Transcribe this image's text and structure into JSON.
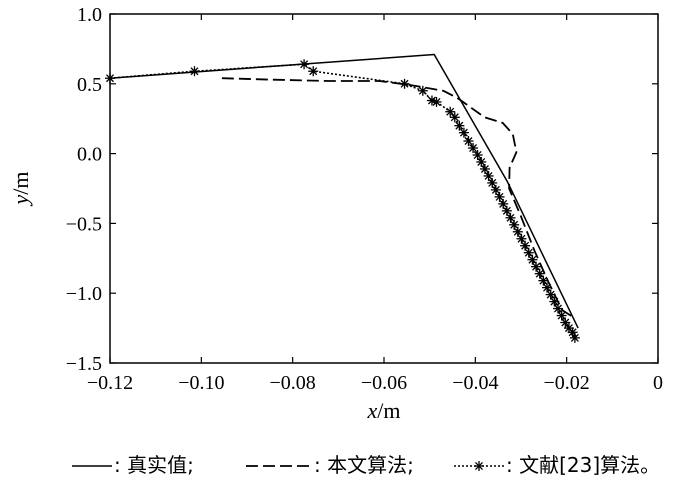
{
  "chart_data": {
    "type": "line",
    "xlabel_var": "x",
    "xlabel_unit": "/m",
    "ylabel_var": "y",
    "ylabel_unit": "/m",
    "xlim": [
      -0.12,
      0
    ],
    "ylim": [
      -1.5,
      1.0
    ],
    "x_ticks": [
      -0.12,
      -0.1,
      -0.08,
      -0.06,
      -0.04,
      -0.02,
      0
    ],
    "x_tick_labels": [
      "−0.12",
      "−0.10",
      "−0.08",
      "−0.06",
      "−0.04",
      "−0.02",
      "0"
    ],
    "y_ticks": [
      1.0,
      0.5,
      0.0,
      -0.5,
      -1.0,
      -1.5
    ],
    "y_tick_labels": [
      "1.0",
      "0.5",
      "0.0",
      "−0.5",
      "−1.0",
      "−1.5"
    ],
    "grid": false,
    "legend_position": "bottom",
    "series": [
      {
        "name": "真实值",
        "style": "solid",
        "marker": "none",
        "x": [
          -0.12,
          -0.049,
          -0.033,
          -0.0175
        ],
        "y": [
          0.54,
          0.71,
          -0.2,
          -1.25
        ]
      },
      {
        "name": "本文算法",
        "style": "dashed",
        "marker": "none",
        "x": [
          -0.0955,
          -0.085,
          -0.072,
          -0.061,
          -0.054,
          -0.047,
          -0.044,
          -0.041,
          -0.038,
          -0.034,
          -0.0318,
          -0.031,
          -0.0325,
          -0.0326,
          -0.03,
          -0.027,
          -0.024,
          -0.021,
          -0.0182
        ],
        "y": [
          0.54,
          0.53,
          0.52,
          0.52,
          0.49,
          0.45,
          0.4,
          0.33,
          0.26,
          0.22,
          0.14,
          0.01,
          -0.1,
          -0.25,
          -0.45,
          -0.7,
          -0.92,
          -1.12,
          -1.18
        ]
      },
      {
        "name": "文献[23]算法",
        "style": "dotted",
        "marker": "asterisk",
        "x": [
          -0.12,
          -0.1015,
          -0.0775,
          -0.0755,
          -0.0555,
          -0.0515,
          -0.0495,
          -0.0485,
          -0.0455,
          -0.0445,
          -0.0435,
          -0.0425,
          -0.0415,
          -0.0405,
          -0.0395,
          -0.0387,
          -0.0379,
          -0.0371,
          -0.0363,
          -0.0355,
          -0.0347,
          -0.0339,
          -0.0331,
          -0.0323,
          -0.0315,
          -0.0307,
          -0.0299,
          -0.0291,
          -0.0283,
          -0.0275,
          -0.0267,
          -0.0259,
          -0.0251,
          -0.0243,
          -0.0235,
          -0.0227,
          -0.0219,
          -0.0211,
          -0.0203,
          -0.0195,
          -0.0187,
          -0.0182
        ],
        "y": [
          0.54,
          0.59,
          0.64,
          0.59,
          0.5,
          0.45,
          0.38,
          0.37,
          0.3,
          0.26,
          0.2,
          0.15,
          0.09,
          0.04,
          -0.01,
          -0.06,
          -0.11,
          -0.16,
          -0.21,
          -0.26,
          -0.31,
          -0.36,
          -0.41,
          -0.46,
          -0.51,
          -0.56,
          -0.61,
          -0.66,
          -0.71,
          -0.76,
          -0.81,
          -0.86,
          -0.91,
          -0.96,
          -1.01,
          -1.06,
          -1.11,
          -1.16,
          -1.21,
          -1.25,
          -1.28,
          -1.32
        ]
      }
    ],
    "legend": [
      {
        "text": ": 真实值;",
        "style": "solid"
      },
      {
        "text": ": 本文算法;",
        "style": "dashed"
      },
      {
        "text": ": 文献[23]算法。",
        "style": "dotted-asterisk"
      }
    ]
  }
}
